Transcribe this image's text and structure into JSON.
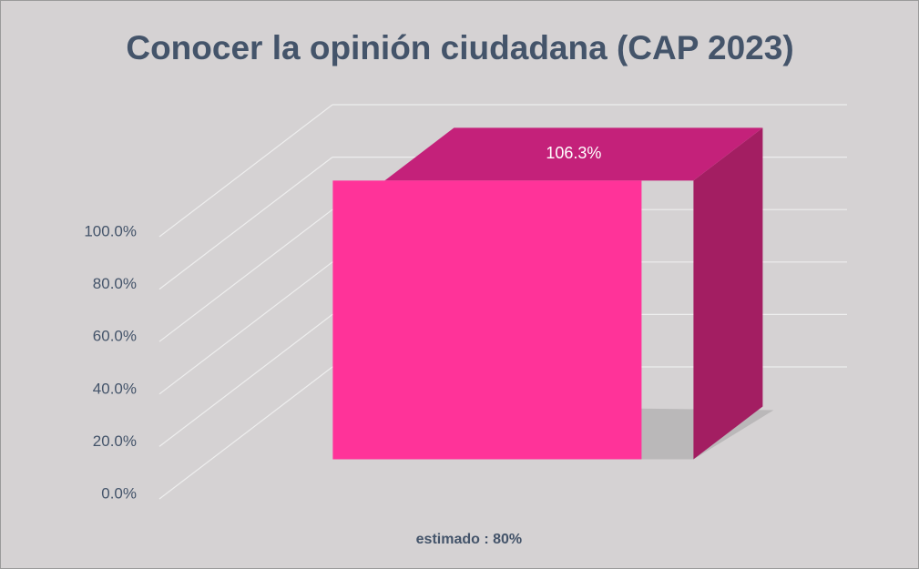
{
  "chart_data": {
    "type": "bar3d",
    "title": "Conocer la opinión ciudadana (CAP 2023)",
    "categories": [
      "estimado : 80%"
    ],
    "values": [
      106.3
    ],
    "value_labels": [
      "106.3%"
    ],
    "color": "#ff3399",
    "ylim": [
      0,
      100
    ],
    "yticks": [
      {
        "value": 0,
        "label": "0.0%"
      },
      {
        "value": 20,
        "label": "20.0%"
      },
      {
        "value": 40,
        "label": "40.0%"
      },
      {
        "value": 60,
        "label": "60.0%"
      },
      {
        "value": 80,
        "label": "80.0%"
      },
      {
        "value": 100,
        "label": "100.0%"
      }
    ],
    "grid": true
  }
}
